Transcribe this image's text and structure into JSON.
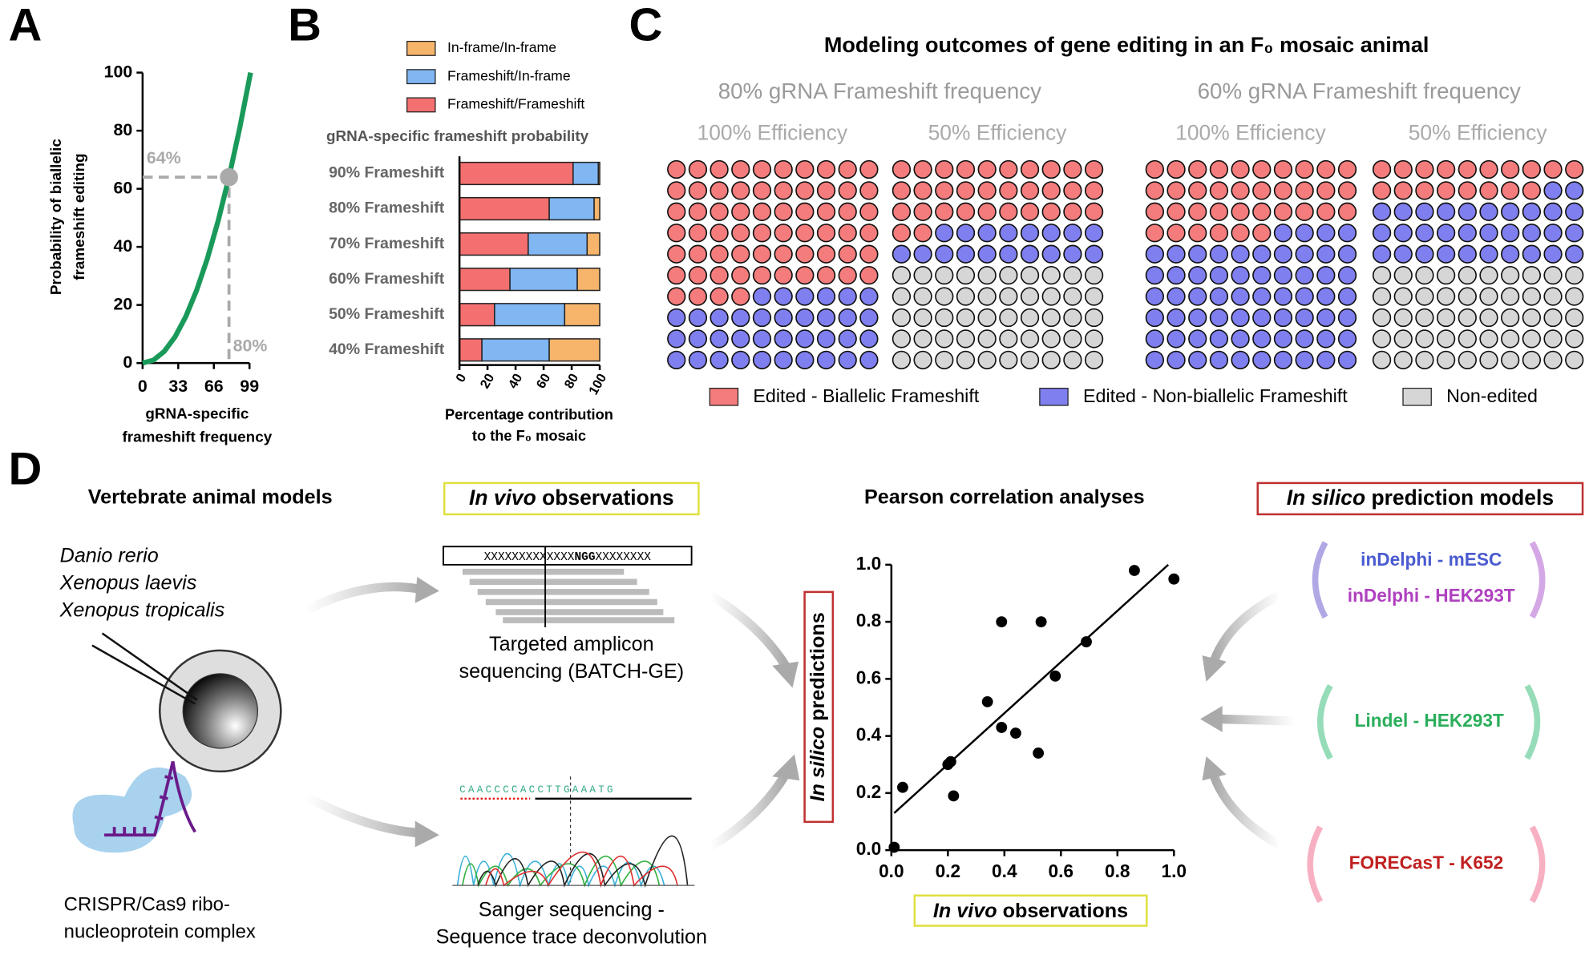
{
  "panel_letters": [
    "A",
    "B",
    "C",
    "D"
  ],
  "chart_data": [
    {
      "type": "line",
      "xlabel": [
        "gRNA-specific",
        "frameshift frequency"
      ],
      "ylabel": [
        "Probability of biallelic",
        "frameshift editing"
      ],
      "x": [
        0,
        10,
        20,
        30,
        40,
        50,
        60,
        70,
        80,
        90,
        100
      ],
      "values": [
        0,
        1,
        4,
        9,
        16,
        25,
        36,
        49,
        64,
        81,
        100
      ],
      "color": "#1a9a5a",
      "xlim": [
        0,
        100
      ],
      "xticks": [
        0,
        33,
        66,
        99
      ],
      "ylim": [
        0,
        100
      ],
      "yticks": [
        0,
        20,
        40,
        60,
        80,
        100
      ],
      "highlight": {
        "x": 80,
        "y": 64,
        "x_label": "80%",
        "y_label": "64%",
        "color": "#aaaaaa"
      }
    },
    {
      "type": "stacked_barh",
      "title": "gRNA-specific frameshift probability",
      "xlabel": [
        "Percentage contribution",
        "to the F₀ mosaic"
      ],
      "categories": [
        "90% Frameshift",
        "80% Frameshift",
        "70% Frameshift",
        "60% Frameshift",
        "50% Frameshift",
        "40% Frameshift"
      ],
      "series": [
        {
          "name": "Frameshift/Frameshift",
          "color": "#f47070",
          "values": [
            81,
            64,
            49,
            36,
            25,
            16
          ]
        },
        {
          "name": "Frameshift/In-frame",
          "color": "#80b6f2",
          "values": [
            18,
            32,
            42,
            48,
            50,
            48
          ]
        },
        {
          "name": "In-frame/In-frame",
          "color": "#f7b56c",
          "values": [
            1,
            4,
            9,
            16,
            25,
            36
          ]
        }
      ],
      "xlim": [
        0,
        100
      ],
      "xticks": [
        0,
        20,
        40,
        60,
        80,
        100
      ]
    },
    {
      "type": "waffle",
      "title": "Modeling outcomes of gene editing in an F₀ mosaic animal",
      "groups": [
        {
          "label": "80% gRNA Frameshift frequency",
          "categories": [
            "100% Efficiency",
            "50% Efficiency"
          ]
        },
        {
          "label": "60% gRNA Frameshift frequency",
          "categories": [
            "100% Efficiency",
            "50% Efficiency"
          ]
        }
      ],
      "series": [
        {
          "name": "Edited - Biallelic Frameshift",
          "color": "#f47c7c",
          "values": [
            64,
            32,
            36,
            18
          ]
        },
        {
          "name": "Edited - Non-biallelic Frameshift",
          "color": "#7f7ff0",
          "values": [
            36,
            18,
            64,
            32
          ]
        },
        {
          "name": "Non-edited",
          "color": "#d6d6d6",
          "values": [
            0,
            50,
            0,
            50
          ]
        }
      ]
    },
    {
      "type": "scatter",
      "title": "Pearson correlation analyses",
      "xlabel": {
        "italic": "In vivo",
        "rest": " observations"
      },
      "ylabel": {
        "italic": "In silico",
        "rest": " predictions"
      },
      "x": [
        0.01,
        0.04,
        0.2,
        0.21,
        0.22,
        0.34,
        0.39,
        0.39,
        0.44,
        0.52,
        0.53,
        0.58,
        0.69,
        0.86,
        1.0
      ],
      "values": [
        0.01,
        0.22,
        0.3,
        0.31,
        0.19,
        0.52,
        0.8,
        0.43,
        0.41,
        0.34,
        0.8,
        0.61,
        0.73,
        0.98,
        0.95
      ],
      "color": "#000000",
      "trendline": {
        "x": [
          0.01,
          0.98
        ],
        "y": [
          0.13,
          1.0
        ]
      },
      "xlim": [
        0,
        1
      ],
      "ylim": [
        0,
        1
      ],
      "xticks": [
        {
          "value": 0,
          "label": "0.0"
        },
        0.2,
        0.4,
        0.6,
        0.8,
        {
          "value": 1,
          "label": "1.0"
        }
      ],
      "yticks": [
        {
          "value": 0,
          "label": "0.0"
        },
        0.2,
        0.4,
        0.6,
        0.8,
        {
          "value": 1,
          "label": "1.0"
        }
      ]
    }
  ],
  "diagram": {
    "animals": {
      "title": "Vertebrate animal models",
      "species": [
        "Danio rerio",
        "Xenopus laevis",
        "Xenopus tropicalis"
      ],
      "reagent": [
        "CRISPR/Cas9 ribo-",
        "nucleoprotein complex"
      ]
    },
    "in_vivo": {
      "title": {
        "italic": "In vivo",
        "rest": " observations"
      },
      "sequence": [
        "XXXXXXXXXXXXX",
        "NGG",
        "XXXXXXXX"
      ],
      "amplicon": [
        "Targeted amplicon",
        "sequencing (BATCH-GE)"
      ],
      "bases": "CAACCCCACCTTGAAATG",
      "sanger": [
        "Sanger sequencing -",
        "Sequence trace deconvolution"
      ]
    },
    "in_silico": {
      "title": {
        "italic": "In silico",
        "rest": " prediction models"
      },
      "models": [
        "inDelphi - mESC",
        "inDelphi - HEK293T",
        "Lindel - HEK293T",
        "FORECasT - K652"
      ]
    }
  }
}
